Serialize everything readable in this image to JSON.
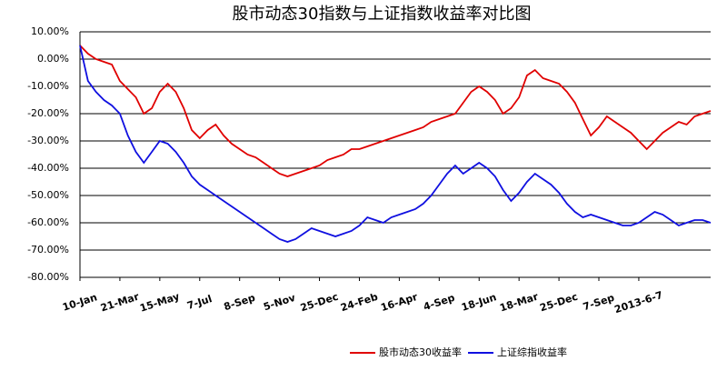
{
  "chart_data": {
    "type": "line",
    "title": "股市动态30指数与上证指数收益率对比图",
    "categories": [
      "10-Jan",
      null,
      null,
      null,
      null,
      "21-Mar",
      null,
      null,
      null,
      null,
      "15-May",
      null,
      null,
      null,
      null,
      "7-Jul",
      null,
      null,
      null,
      null,
      "8-Sep",
      null,
      null,
      null,
      null,
      "5-Nov",
      null,
      null,
      null,
      null,
      "25-Dec",
      null,
      null,
      null,
      null,
      "24-Feb",
      null,
      null,
      null,
      null,
      "16-Apr",
      null,
      null,
      null,
      null,
      "4-Sep",
      null,
      null,
      null,
      null,
      "18-Jun",
      null,
      null,
      null,
      null,
      "18-Mar",
      null,
      null,
      null,
      null,
      "25-Dec",
      null,
      null,
      null,
      null,
      "7-Sep",
      null,
      null,
      null,
      null,
      "2013-6-7",
      null,
      null,
      null,
      null,
      null,
      null,
      null,
      null,
      null
    ],
    "series": [
      {
        "name": "股市动态30收益率",
        "color": "#e00000",
        "values": [
          5,
          2,
          0,
          -1,
          -2,
          -8,
          -11,
          -14,
          -20,
          -18,
          -12,
          -9,
          -12,
          -18,
          -26,
          -29,
          -26,
          -24,
          -28,
          -31,
          -33,
          -35,
          -36,
          -38,
          -40,
          -42,
          -43,
          -42,
          -41,
          -40,
          -39,
          -37,
          -36,
          -35,
          -33,
          -33,
          -32,
          -31,
          -30,
          -29,
          -28,
          -27,
          -26,
          -25,
          -23,
          -22,
          -21,
          -20,
          -16,
          -12,
          -10,
          -12,
          -15,
          -20,
          -18,
          -14,
          -6,
          -4,
          -7,
          -8,
          -9,
          -12,
          -16,
          -22,
          -28,
          -25,
          -21,
          -23,
          -25,
          -27,
          -30,
          -33,
          -30,
          -27,
          -25,
          -23,
          -24,
          -21,
          -20,
          -19
        ]
      },
      {
        "name": "上证综指收益率",
        "color": "#1010e0",
        "values": [
          5,
          -8,
          -12,
          -15,
          -17,
          -20,
          -28,
          -34,
          -38,
          -34,
          -30,
          -31,
          -34,
          -38,
          -43,
          -46,
          -48,
          -50,
          -52,
          -54,
          -56,
          -58,
          -60,
          -62,
          -64,
          -66,
          -67,
          -66,
          -64,
          -62,
          -63,
          -64,
          -65,
          -64,
          -63,
          -61,
          -58,
          -59,
          -60,
          -58,
          -57,
          -56,
          -55,
          -53,
          -50,
          -46,
          -42,
          -39,
          -42,
          -40,
          -38,
          -40,
          -43,
          -48,
          -52,
          -49,
          -45,
          -42,
          -44,
          -46,
          -49,
          -53,
          -56,
          -58,
          -57,
          -58,
          -59,
          -60,
          -61,
          -61,
          -60,
          -58,
          -56,
          -57,
          -59,
          -61,
          -60,
          -59,
          -59,
          -60
        ]
      }
    ],
    "ylim": [
      -80,
      10
    ],
    "yticks": [
      {
        "value": 10,
        "label": "10.00%"
      },
      {
        "value": 0,
        "label": "0.00%"
      },
      {
        "value": -10,
        "label": "-10.00%"
      },
      {
        "value": -20,
        "label": "-20.00%"
      },
      {
        "value": -30,
        "label": "-30.00%"
      },
      {
        "value": -40,
        "label": "-40.00%"
      },
      {
        "value": -50,
        "label": "-50.00%"
      },
      {
        "value": -60,
        "label": "-60.00%"
      },
      {
        "value": -70,
        "label": "-70.00%"
      },
      {
        "value": -80,
        "label": "-80.00%"
      }
    ],
    "grid": true
  }
}
